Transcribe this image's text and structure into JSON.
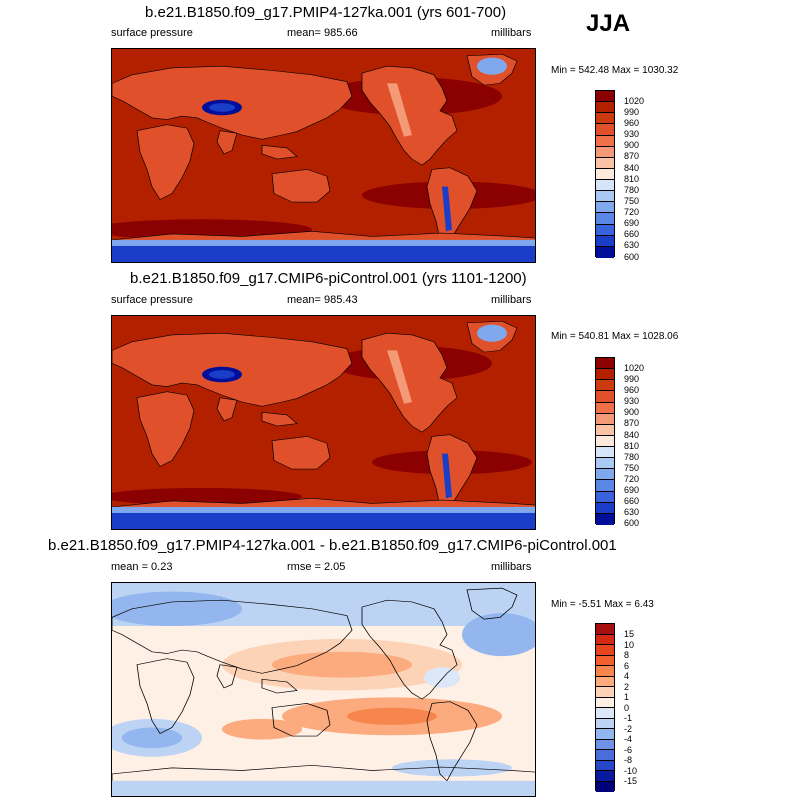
{
  "season": "JJA",
  "panels": [
    {
      "title": "b.e21.B1850.f09_g17.PMIP4-127ka.001 (yrs 601-700)",
      "left": "surface pressure",
      "center": "mean= 985.66",
      "right": "millibars",
      "minmax": "Min = 542.48 Max = 1030.32",
      "levels": [
        "1020",
        "990",
        "960",
        "930",
        "900",
        "870",
        "840",
        "810",
        "780",
        "750",
        "720",
        "690",
        "660",
        "630",
        "600"
      ],
      "colors": [
        "#8b0000",
        "#b22000",
        "#cc3a10",
        "#e0502a",
        "#ef7049",
        "#f59a76",
        "#fbc3a6",
        "#fde8dc",
        "#d6e6f8",
        "#a9c9f2",
        "#7fa9ec",
        "#5a86e6",
        "#3863dc",
        "#1a3ec8",
        "#000f9a"
      ]
    },
    {
      "title": "b.e21.B1850.f09_g17.CMIP6-piControl.001 (yrs 1101-1200)",
      "left": "surface pressure",
      "center": "mean= 985.43",
      "right": "millibars",
      "minmax": "Min = 540.81 Max = 1028.06",
      "levels": [
        "1020",
        "990",
        "960",
        "930",
        "900",
        "870",
        "840",
        "810",
        "780",
        "750",
        "720",
        "690",
        "660",
        "630",
        "600"
      ],
      "colors": [
        "#8b0000",
        "#b22000",
        "#cc3a10",
        "#e0502a",
        "#ef7049",
        "#f59a76",
        "#fbc3a6",
        "#fde8dc",
        "#d6e6f8",
        "#a9c9f2",
        "#7fa9ec",
        "#5a86e6",
        "#3863dc",
        "#1a3ec8",
        "#000f9a"
      ]
    },
    {
      "title": "b.e21.B1850.f09_g17.PMIP4-127ka.001 - b.e21.B1850.f09_g17.CMIP6-piControl.001",
      "left": "mean =   0.23",
      "center": "rmse =   2.05",
      "right": "millibars",
      "minmax": "Min =  -5.51 Max =   6.43",
      "levels": [
        "15",
        "10",
        "8",
        "6",
        "4",
        "2",
        "1",
        "0",
        "-1",
        "-2",
        "-4",
        "-6",
        "-8",
        "-10",
        "-15"
      ],
      "colors": [
        "#a50f0f",
        "#d42a14",
        "#e8451e",
        "#f2602e",
        "#f7864e",
        "#fbab7e",
        "#fdd3b8",
        "#fff0e6",
        "#dce8f8",
        "#bcd3f4",
        "#94b6ee",
        "#6e92e6",
        "#4a6ddc",
        "#2647c8",
        "#0a1a9c",
        "#000078"
      ]
    }
  ]
}
